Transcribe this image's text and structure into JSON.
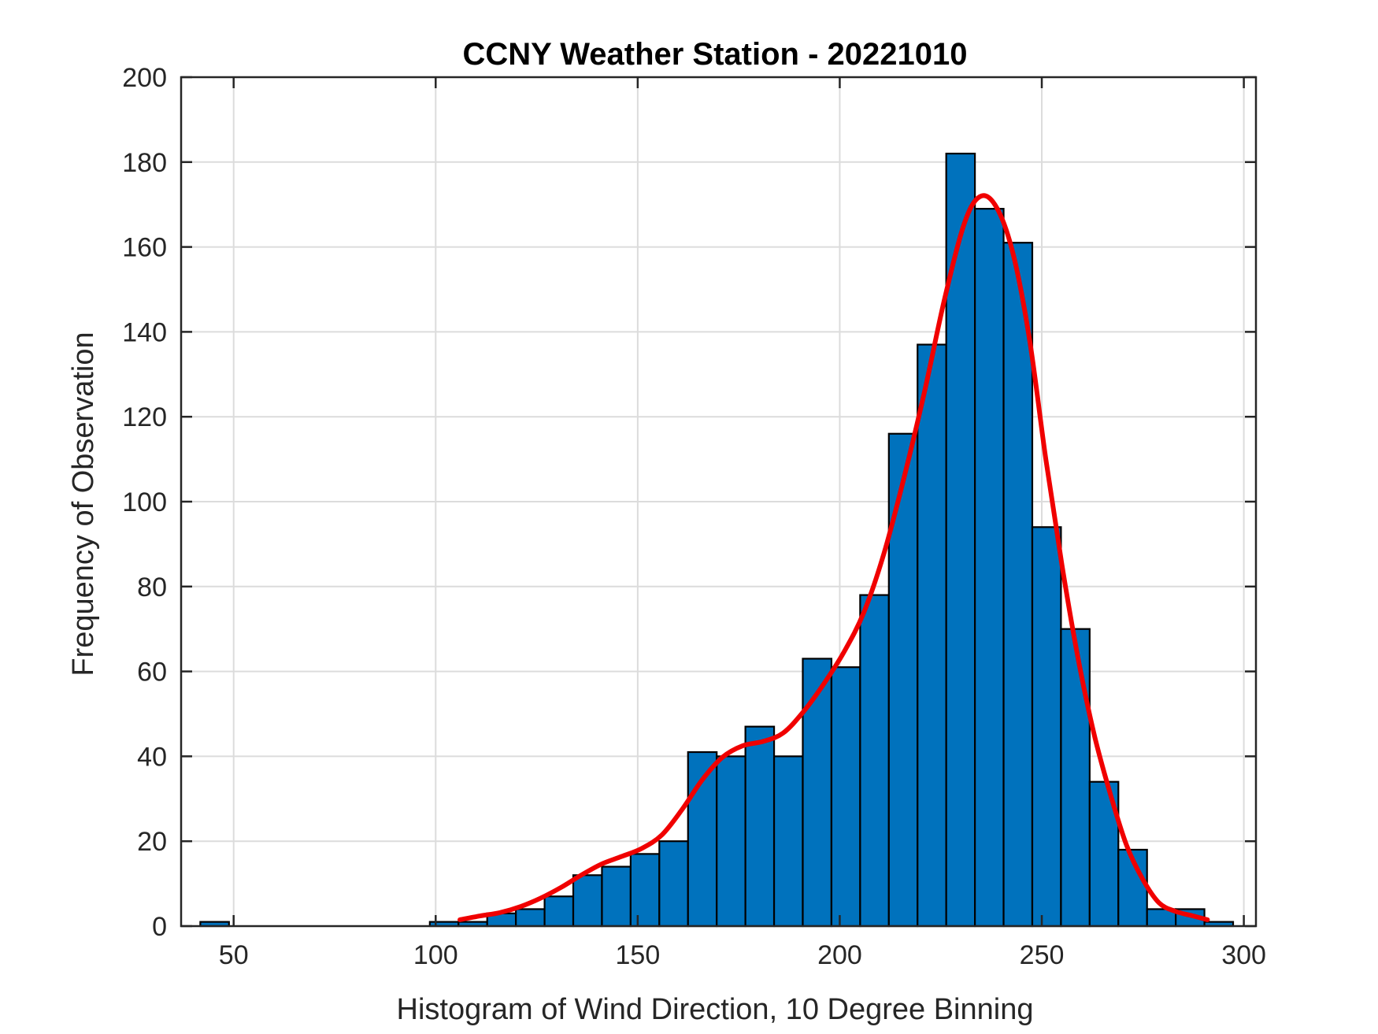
{
  "chart_data": {
    "type": "bar",
    "title": "CCNY Weather Station - 20221010",
    "xlabel": "Histogram of Wind Direction, 10 Degree Binning",
    "ylabel": "Frequency of Observation",
    "xlim": [
      37,
      303
    ],
    "ylim": [
      0,
      200
    ],
    "x_ticks": [
      50,
      100,
      150,
      200,
      250,
      300
    ],
    "y_ticks": [
      0,
      20,
      40,
      60,
      80,
      100,
      120,
      140,
      160,
      180,
      200
    ],
    "grid": true,
    "bin_width": 7.1,
    "bins": [
      {
        "x": 45.3,
        "value": 1
      },
      {
        "x": 102.1,
        "value": 1
      },
      {
        "x": 109.2,
        "value": 1
      },
      {
        "x": 116.3,
        "value": 3
      },
      {
        "x": 123.4,
        "value": 4
      },
      {
        "x": 130.5,
        "value": 7
      },
      {
        "x": 137.6,
        "value": 12
      },
      {
        "x": 144.7,
        "value": 14
      },
      {
        "x": 151.8,
        "value": 17
      },
      {
        "x": 158.9,
        "value": 20
      },
      {
        "x": 166.0,
        "value": 41
      },
      {
        "x": 173.1,
        "value": 40
      },
      {
        "x": 180.2,
        "value": 47
      },
      {
        "x": 187.3,
        "value": 40
      },
      {
        "x": 194.4,
        "value": 63
      },
      {
        "x": 201.5,
        "value": 61
      },
      {
        "x": 208.6,
        "value": 78
      },
      {
        "x": 215.7,
        "value": 116
      },
      {
        "x": 222.8,
        "value": 137
      },
      {
        "x": 229.9,
        "value": 182
      },
      {
        "x": 237.0,
        "value": 169
      },
      {
        "x": 244.1,
        "value": 161
      },
      {
        "x": 251.2,
        "value": 94
      },
      {
        "x": 258.3,
        "value": 70
      },
      {
        "x": 265.4,
        "value": 34
      },
      {
        "x": 272.5,
        "value": 18
      },
      {
        "x": 279.6,
        "value": 4
      },
      {
        "x": 286.7,
        "value": 4
      },
      {
        "x": 293.8,
        "value": 1
      }
    ],
    "fit_curve": {
      "color": "#f00000",
      "points": [
        [
          106,
          1.5
        ],
        [
          111,
          2.4
        ],
        [
          116,
          3.2
        ],
        [
          121,
          4.6
        ],
        [
          126,
          6.6
        ],
        [
          131,
          9.1
        ],
        [
          136,
          12.0
        ],
        [
          141,
          14.6
        ],
        [
          146,
          16.4
        ],
        [
          151,
          18.3
        ],
        [
          156,
          21.5
        ],
        [
          161,
          27.5
        ],
        [
          166,
          34.5
        ],
        [
          171,
          39.8
        ],
        [
          176,
          42.5
        ],
        [
          181,
          43.5
        ],
        [
          186,
          45.5
        ],
        [
          191,
          50.5
        ],
        [
          196,
          57.0
        ],
        [
          201,
          64.5
        ],
        [
          206,
          74.0
        ],
        [
          211,
          88.0
        ],
        [
          216,
          106.0
        ],
        [
          221,
          126.0
        ],
        [
          226,
          148.0
        ],
        [
          231,
          166.0
        ],
        [
          235,
          172.0
        ],
        [
          239,
          169.0
        ],
        [
          243,
          158.0
        ],
        [
          247,
          138.0
        ],
        [
          251,
          110.0
        ],
        [
          255,
          85.0
        ],
        [
          259,
          63.0
        ],
        [
          263,
          45.0
        ],
        [
          267,
          31.0
        ],
        [
          271,
          19.0
        ],
        [
          275,
          11.0
        ],
        [
          279,
          5.5
        ],
        [
          283,
          3.5
        ],
        [
          287,
          2.5
        ],
        [
          291,
          1.5
        ]
      ]
    },
    "colors": {
      "bar_fill": "#0072bd",
      "bar_edge": "#000000",
      "grid": "#dcdcdc",
      "axes": "#262626"
    }
  }
}
